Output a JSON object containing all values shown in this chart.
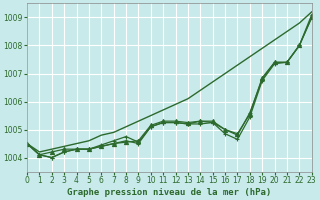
{
  "background_color": "#c8eaea",
  "grid_color": "#ffffff",
  "line_color": "#2d6a2d",
  "xlabel": "Graphe pression niveau de la mer (hPa)",
  "ylim": [
    1003.5,
    1009.5
  ],
  "xlim": [
    0,
    23
  ],
  "yticks": [
    1004,
    1005,
    1006,
    1007,
    1008,
    1009
  ],
  "xticks": [
    0,
    1,
    2,
    3,
    4,
    5,
    6,
    7,
    8,
    9,
    10,
    11,
    12,
    13,
    14,
    15,
    16,
    17,
    18,
    19,
    20,
    21,
    22,
    23
  ],
  "series": [
    {
      "y": [
        1004.5,
        1004.2,
        1004.3,
        1004.4,
        1004.5,
        1004.6,
        1004.8,
        1004.9,
        1005.1,
        1005.3,
        1005.5,
        1005.7,
        1005.9,
        1006.1,
        1006.4,
        1006.7,
        1007.0,
        1007.3,
        1007.6,
        1007.9,
        1008.2,
        1008.5,
        1008.8,
        1009.2
      ],
      "marker": "none",
      "linewidth": 1.0
    },
    {
      "y": [
        1004.5,
        1004.1,
        1004.0,
        1004.2,
        1004.3,
        1004.3,
        1004.4,
        1004.5,
        1004.6,
        1004.5,
        1005.1,
        1005.25,
        1005.25,
        1005.2,
        1005.3,
        1005.25,
        1005.0,
        1004.8,
        1005.6,
        1006.8,
        1007.4,
        1007.4,
        1008.0,
        1009.1
      ],
      "marker": "+",
      "linewidth": 0.9
    },
    {
      "y": [
        1004.5,
        1004.1,
        1004.2,
        1004.3,
        1004.3,
        1004.3,
        1004.4,
        1004.5,
        1004.55,
        1004.6,
        1005.15,
        1005.3,
        1005.3,
        1005.25,
        1005.3,
        1005.3,
        1005.0,
        1004.85,
        1005.55,
        1006.85,
        1007.4,
        1007.4,
        1008.0,
        1009.0
      ],
      "marker": "^",
      "linewidth": 0.9
    },
    {
      "y": [
        1004.5,
        1004.1,
        1004.0,
        1004.2,
        1004.3,
        1004.3,
        1004.45,
        1004.6,
        1004.75,
        1004.55,
        1005.1,
        1005.25,
        1005.25,
        1005.2,
        1005.2,
        1005.25,
        1004.85,
        1004.65,
        1005.45,
        1006.75,
        1007.35,
        1007.4,
        1008.0,
        1009.0
      ],
      "marker": "+",
      "linewidth": 0.9
    }
  ]
}
